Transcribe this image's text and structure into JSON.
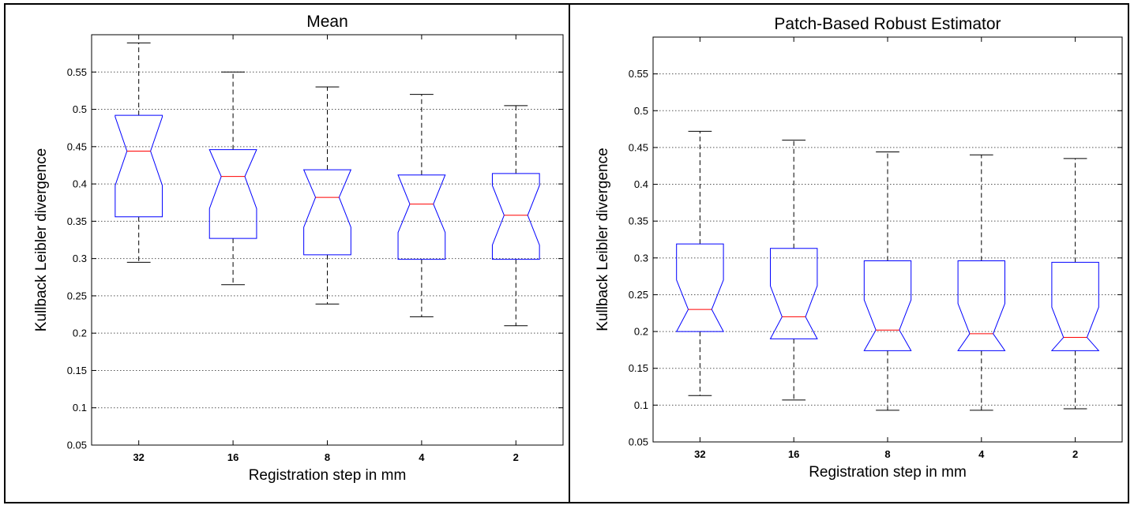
{
  "chart_data": [
    {
      "type": "box",
      "title": "Mean",
      "xlabel": "Registration step in mm",
      "ylabel": "Kullback Leibler divergence",
      "ylim": [
        0.05,
        0.6
      ],
      "yticks": [
        "0.05",
        "0.1",
        "0.15",
        "0.2",
        "0.25",
        "0.3",
        "0.35",
        "0.4",
        "0.45",
        "0.5",
        "0.55"
      ],
      "grid": "horizontal dotted",
      "notched": true,
      "categories": [
        "32",
        "16",
        "8",
        "4",
        "2"
      ],
      "boxes": [
        {
          "whisker_low": 0.295,
          "q1": 0.356,
          "notch_low": 0.398,
          "median": 0.444,
          "notch_high": 0.49,
          "q3": 0.492,
          "whisker_high": 0.589
        },
        {
          "whisker_low": 0.265,
          "q1": 0.327,
          "notch_low": 0.367,
          "median": 0.41,
          "notch_high": 0.446,
          "q3": 0.446,
          "whisker_high": 0.55
        },
        {
          "whisker_low": 0.239,
          "q1": 0.305,
          "notch_low": 0.342,
          "median": 0.382,
          "notch_high": 0.419,
          "q3": 0.419,
          "whisker_high": 0.53
        },
        {
          "whisker_low": 0.222,
          "q1": 0.299,
          "notch_low": 0.335,
          "median": 0.373,
          "notch_high": 0.412,
          "q3": 0.412,
          "whisker_high": 0.52
        },
        {
          "whisker_low": 0.21,
          "q1": 0.299,
          "notch_low": 0.318,
          "median": 0.358,
          "notch_high": 0.398,
          "q3": 0.414,
          "whisker_high": 0.505
        }
      ],
      "colors": {
        "box": "#0000ff",
        "median": "#ff0000",
        "whisker": "#000000",
        "grid": "#555555"
      }
    },
    {
      "type": "box",
      "title": "Patch-Based Robust Estimator",
      "xlabel": "Registration step in mm",
      "ylabel": "Kullback Leibler divergence",
      "ylim": [
        0.05,
        0.6
      ],
      "yticks": [
        "0.05",
        "0.1",
        "0.15",
        "0.2",
        "0.25",
        "0.3",
        "0.35",
        "0.4",
        "0.45",
        "0.5",
        "0.55"
      ],
      "grid": "horizontal dotted",
      "notched": true,
      "categories": [
        "32",
        "16",
        "8",
        "4",
        "2"
      ],
      "boxes": [
        {
          "whisker_low": 0.113,
          "q1": 0.2,
          "notch_low": 0.2,
          "median": 0.23,
          "notch_high": 0.27,
          "q3": 0.319,
          "whisker_high": 0.472
        },
        {
          "whisker_low": 0.107,
          "q1": 0.19,
          "notch_low": 0.19,
          "median": 0.22,
          "notch_high": 0.262,
          "q3": 0.313,
          "whisker_high": 0.46
        },
        {
          "whisker_low": 0.093,
          "q1": 0.174,
          "notch_low": 0.174,
          "median": 0.202,
          "notch_high": 0.243,
          "q3": 0.296,
          "whisker_high": 0.444
        },
        {
          "whisker_low": 0.093,
          "q1": 0.174,
          "notch_low": 0.174,
          "median": 0.197,
          "notch_high": 0.238,
          "q3": 0.296,
          "whisker_high": 0.44
        },
        {
          "whisker_low": 0.095,
          "q1": 0.174,
          "notch_low": 0.174,
          "median": 0.192,
          "notch_high": 0.233,
          "q3": 0.294,
          "whisker_high": 0.435
        }
      ],
      "colors": {
        "box": "#0000ff",
        "median": "#ff0000",
        "whisker": "#000000",
        "grid": "#555555"
      }
    }
  ]
}
